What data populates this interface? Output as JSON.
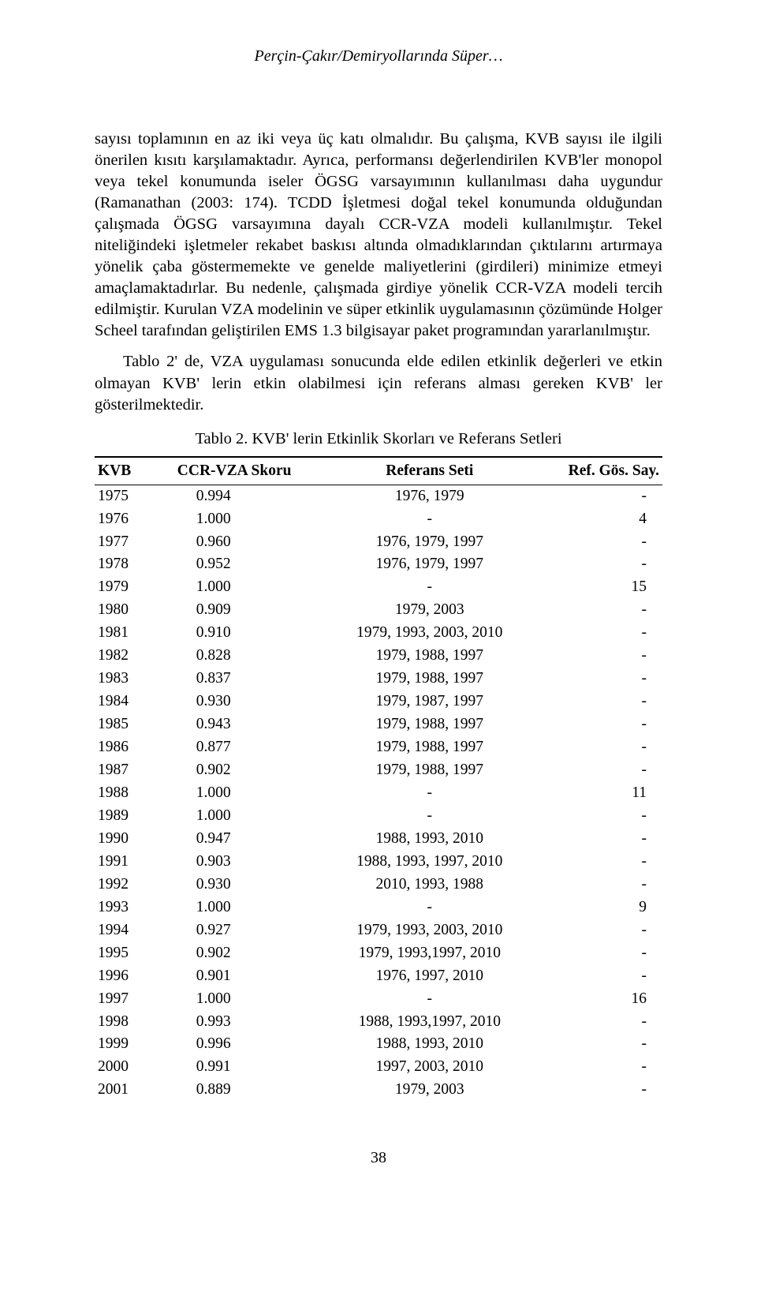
{
  "header": {
    "running_head": "Perçin-Çakır/Demiryollarında Süper…"
  },
  "paragraphs": {
    "p1": "sayısı toplamının en az iki veya üç katı olmalıdır. Bu çalışma, KVB sayısı ile ilgili önerilen kısıtı karşılamaktadır. Ayrıca, performansı değerlendirilen KVB'ler monopol veya tekel konumunda iseler ÖGSG varsayımının kullanılması daha uygundur (Ramanathan (2003: 174). TCDD İşletmesi doğal tekel konumunda olduğundan çalışmada ÖGSG varsayımına dayalı CCR-VZA modeli kullanılmıştır. Tekel niteliğindeki işletmeler rekabet baskısı altında olmadıklarından çıktılarını artırmaya yönelik çaba göstermemekte ve genelde maliyetlerini (girdileri) minimize etmeyi amaçlamaktadırlar. Bu nedenle, çalışmada girdiye yönelik CCR-VZA modeli tercih edilmiştir. Kurulan VZA modelinin ve süper etkinlik uygulamasının çözümünde Holger Scheel tarafından geliştirilen EMS 1.3 bilgisayar paket programından yararlanılmıştır.",
    "p2": "Tablo 2' de, VZA uygulaması sonucunda elde edilen etkinlik değerleri ve etkin olmayan KVB' lerin etkin olabilmesi için referans alması gereken KVB' ler gösterilmektedir."
  },
  "table": {
    "caption": "Tablo 2. KVB' lerin Etkinlik Skorları ve Referans Setleri",
    "columns": {
      "kvb": "KVB",
      "score": "CCR-VZA Skoru",
      "refs": "Referans Seti",
      "count": "Ref. Gös. Say."
    },
    "rows": [
      {
        "kvb": "1975",
        "score": "0.994",
        "refs": "1976, 1979",
        "count": "-"
      },
      {
        "kvb": "1976",
        "score": "1.000",
        "refs": "-",
        "count": "4"
      },
      {
        "kvb": "1977",
        "score": "0.960",
        "refs": "1976, 1979, 1997",
        "count": "-"
      },
      {
        "kvb": "1978",
        "score": "0.952",
        "refs": "1976, 1979, 1997",
        "count": "-"
      },
      {
        "kvb": "1979",
        "score": "1.000",
        "refs": "-",
        "count": "15"
      },
      {
        "kvb": "1980",
        "score": "0.909",
        "refs": "1979, 2003",
        "count": "-"
      },
      {
        "kvb": "1981",
        "score": "0.910",
        "refs": "1979, 1993, 2003, 2010",
        "count": "-"
      },
      {
        "kvb": "1982",
        "score": "0.828",
        "refs": "1979, 1988, 1997",
        "count": "-"
      },
      {
        "kvb": "1983",
        "score": "0.837",
        "refs": "1979, 1988, 1997",
        "count": "-"
      },
      {
        "kvb": "1984",
        "score": "0.930",
        "refs": "1979, 1987, 1997",
        "count": "-"
      },
      {
        "kvb": "1985",
        "score": "0.943",
        "refs": "1979, 1988, 1997",
        "count": "-"
      },
      {
        "kvb": "1986",
        "score": "0.877",
        "refs": "1979, 1988, 1997",
        "count": "-"
      },
      {
        "kvb": "1987",
        "score": "0.902",
        "refs": "1979, 1988, 1997",
        "count": "-"
      },
      {
        "kvb": "1988",
        "score": "1.000",
        "refs": "-",
        "count": "11"
      },
      {
        "kvb": "1989",
        "score": "1.000",
        "refs": "-",
        "count": "-"
      },
      {
        "kvb": "1990",
        "score": "0.947",
        "refs": "1988, 1993, 2010",
        "count": "-"
      },
      {
        "kvb": "1991",
        "score": "0.903",
        "refs": "1988, 1993, 1997, 2010",
        "count": "-"
      },
      {
        "kvb": "1992",
        "score": "0.930",
        "refs": "2010, 1993, 1988",
        "count": "-"
      },
      {
        "kvb": "1993",
        "score": "1.000",
        "refs": "-",
        "count": "9"
      },
      {
        "kvb": "1994",
        "score": "0.927",
        "refs": "1979, 1993, 2003, 2010",
        "count": "-"
      },
      {
        "kvb": "1995",
        "score": "0.902",
        "refs": "1979, 1993,1997, 2010",
        "count": "-"
      },
      {
        "kvb": "1996",
        "score": "0.901",
        "refs": "1976, 1997, 2010",
        "count": "-"
      },
      {
        "kvb": "1997",
        "score": "1.000",
        "refs": "-",
        "count": "16"
      },
      {
        "kvb": "1998",
        "score": "0.993",
        "refs": "1988, 1993,1997, 2010",
        "count": "-"
      },
      {
        "kvb": "1999",
        "score": "0.996",
        "refs": "1988, 1993, 2010",
        "count": "-"
      },
      {
        "kvb": "2000",
        "score": "0.991",
        "refs": "1997, 2003, 2010",
        "count": "-"
      },
      {
        "kvb": "2001",
        "score": "0.889",
        "refs": "1979, 2003",
        "count": "-"
      }
    ]
  },
  "footer": {
    "page_number": "38"
  }
}
